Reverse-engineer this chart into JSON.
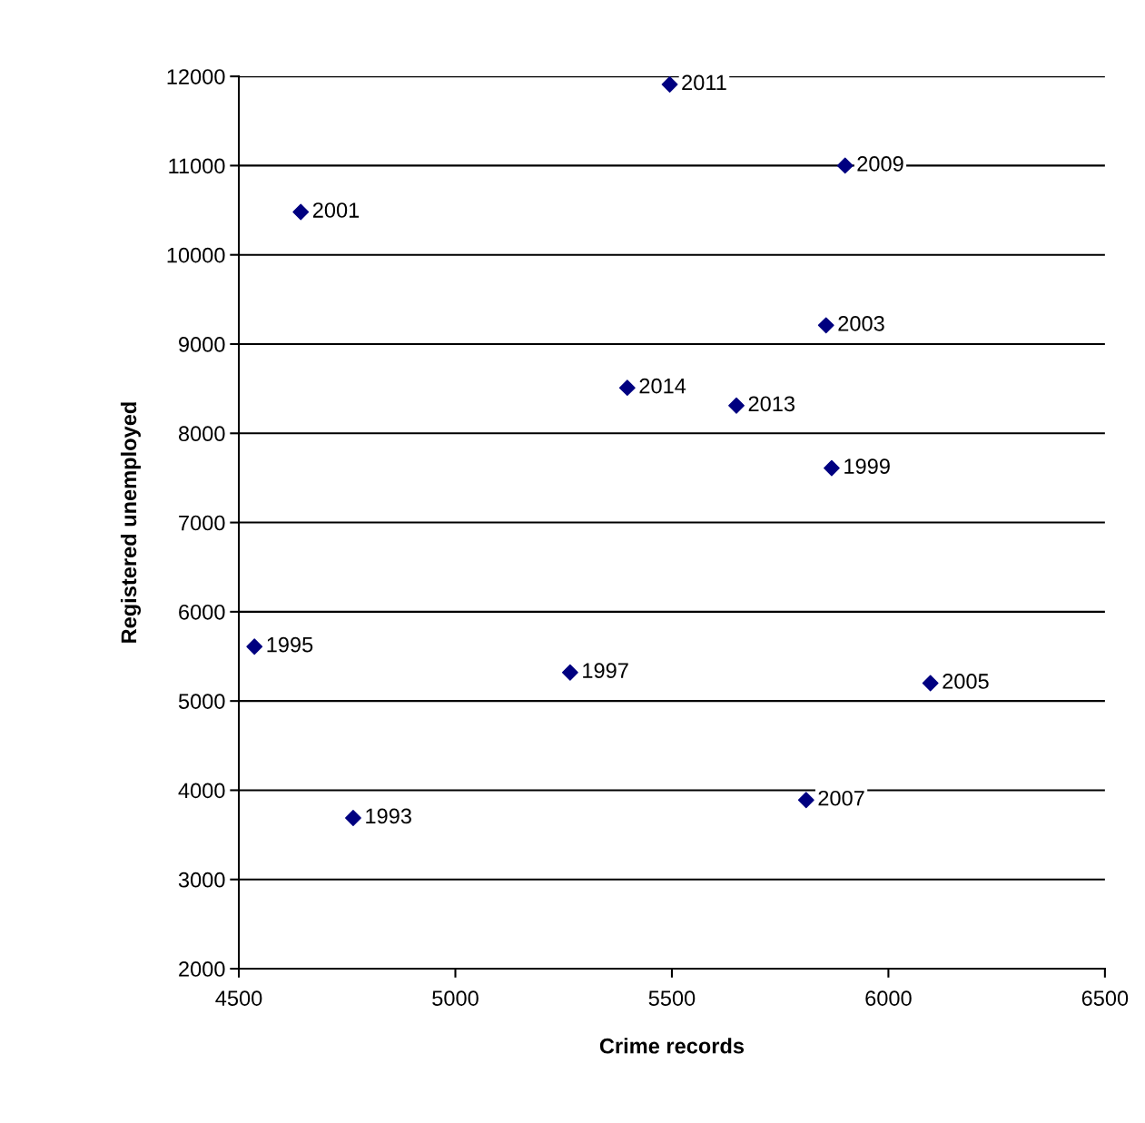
{
  "chart_data": {
    "type": "scatter",
    "xlabel": "Crime records",
    "ylabel": "Registered unemployed",
    "x": [
      5495,
      5900,
      4643,
      5856,
      5397,
      5649,
      5869,
      4536,
      5265,
      6097,
      5810,
      4764
    ],
    "series": [
      {
        "color": "#000080",
        "values": [
          11910,
          11000,
          10480,
          9210,
          8510,
          8310,
          7610,
          5610,
          5320,
          5200,
          3890,
          3690
        ]
      }
    ],
    "annotations": [
      {
        "text": "2011",
        "x": 5495,
        "y": 11910
      },
      {
        "text": "2009",
        "x": 5900,
        "y": 11000
      },
      {
        "text": "2001",
        "x": 4643,
        "y": 10480
      },
      {
        "text": "2003",
        "x": 5856,
        "y": 9210
      },
      {
        "text": "2014",
        "x": 5397,
        "y": 8510
      },
      {
        "text": "2013",
        "x": 5649,
        "y": 8310
      },
      {
        "text": "1999",
        "x": 5869,
        "y": 7610
      },
      {
        "text": "1995",
        "x": 4536,
        "y": 5610
      },
      {
        "text": "1997",
        "x": 5265,
        "y": 5320
      },
      {
        "text": "2005",
        "x": 6097,
        "y": 5200
      },
      {
        "text": "2007",
        "x": 5810,
        "y": 3890
      },
      {
        "text": "1993",
        "x": 4764,
        "y": 3690
      }
    ],
    "xlim": [
      4500,
      6500
    ],
    "xticks": [
      4500,
      5000,
      5500,
      6000,
      6500
    ],
    "ylim": [
      2000,
      12000
    ],
    "yticks": [
      2000,
      3000,
      4000,
      5000,
      6000,
      7000,
      8000,
      9000,
      10000,
      11000,
      12000
    ],
    "grid": "y",
    "marker": "diamond",
    "legend": false
  }
}
